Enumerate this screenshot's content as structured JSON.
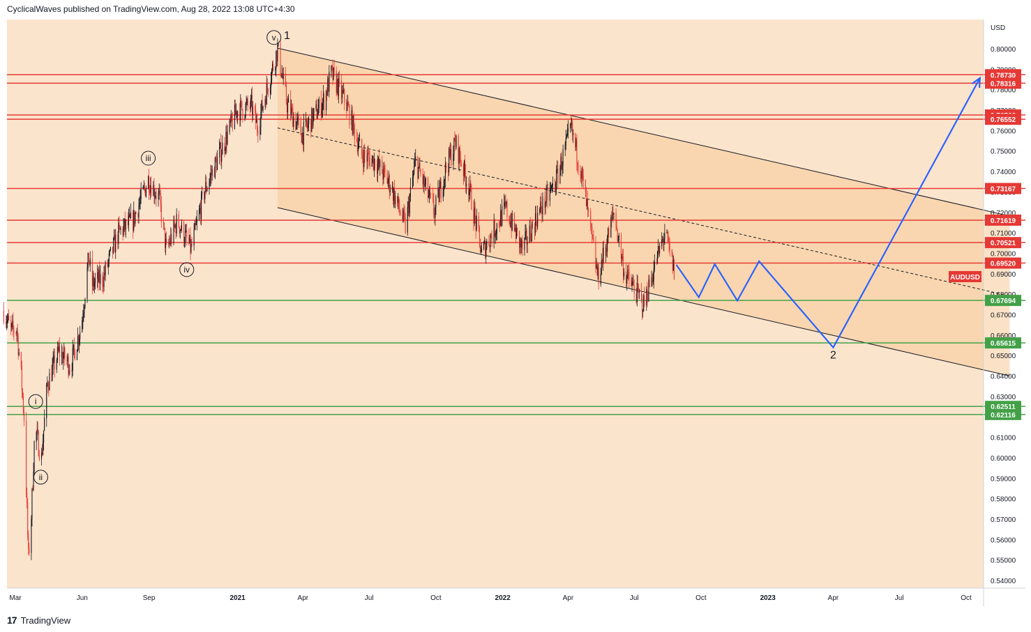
{
  "header": {
    "publisher_line": "CyclicalWaves published on TradingView.com, Aug 28, 2022 13:08 UTC+4:30"
  },
  "footer": {
    "logo_text": "TradingView",
    "logo_icon": "tradingview-logo-icon"
  },
  "colors": {
    "background": "#fbe4cc",
    "channel_fill": "#f8ca97",
    "resistance": "#e53935",
    "support": "#43a047",
    "projection": "#2962ff",
    "candle_up": "#131722",
    "candle_down": "#e53935",
    "symbol_badge": "#e53935"
  },
  "chart_data": {
    "type": "candlestick",
    "symbol": "AUDUSD",
    "currency_label": "USD",
    "ylim": [
      0.535,
      0.81
    ],
    "x_ticks": [
      {
        "label": "Mar",
        "date": "2020-03-01",
        "bold": false
      },
      {
        "label": "Jun",
        "date": "2020-06-01",
        "bold": false
      },
      {
        "label": "Sep",
        "date": "2020-09-01",
        "bold": false
      },
      {
        "label": "2021",
        "date": "2021-01-01",
        "bold": true
      },
      {
        "label": "Apr",
        "date": "2021-04-01",
        "bold": false
      },
      {
        "label": "Jul",
        "date": "2021-07-01",
        "bold": false
      },
      {
        "label": "Oct",
        "date": "2021-10-01",
        "bold": false
      },
      {
        "label": "2022",
        "date": "2022-01-01",
        "bold": true
      },
      {
        "label": "Apr",
        "date": "2022-04-01",
        "bold": false
      },
      {
        "label": "Jul",
        "date": "2022-07-01",
        "bold": false
      },
      {
        "label": "Oct",
        "date": "2022-10-01",
        "bold": false
      },
      {
        "label": "2023",
        "date": "2023-01-01",
        "bold": true
      },
      {
        "label": "Apr",
        "date": "2023-04-01",
        "bold": false
      },
      {
        "label": "Jul",
        "date": "2023-07-01",
        "bold": false
      },
      {
        "label": "Oct",
        "date": "2023-10-01",
        "bold": false
      }
    ],
    "y_ticks": [
      "0.80000",
      "0.79000",
      "0.78000",
      "0.77000",
      "0.76000",
      "0.75000",
      "0.74000",
      "0.73000",
      "0.72000",
      "0.71000",
      "0.70000",
      "0.69000",
      "0.68000",
      "0.67000",
      "0.66000",
      "0.65000",
      "0.64000",
      "0.63000",
      "0.62000",
      "0.61000",
      "0.60000",
      "0.59000",
      "0.58000",
      "0.57000",
      "0.56000",
      "0.55000",
      "0.54000"
    ],
    "horizontal_levels": [
      {
        "label": "0.78730",
        "value": 0.7873,
        "kind": "resistance"
      },
      {
        "label": "0.78316",
        "value": 0.78316,
        "kind": "resistance"
      },
      {
        "label": "0.76762",
        "value": 0.76762,
        "kind": "resistance"
      },
      {
        "label": "0.76552",
        "value": 0.76552,
        "kind": "resistance"
      },
      {
        "label": "0.73167",
        "value": 0.73167,
        "kind": "resistance"
      },
      {
        "label": "0.71619",
        "value": 0.71619,
        "kind": "resistance"
      },
      {
        "label": "0.70521",
        "value": 0.70521,
        "kind": "resistance"
      },
      {
        "label": "0.69520",
        "value": 0.6952,
        "kind": "resistance"
      },
      {
        "label": "0.67694",
        "value": 0.67694,
        "kind": "support"
      },
      {
        "label": "0.65615",
        "value": 0.65615,
        "kind": "support"
      },
      {
        "label": "0.62511",
        "value": 0.62511,
        "kind": "support"
      },
      {
        "label": "0.62116",
        "value": 0.62116,
        "kind": "support"
      }
    ],
    "price_path": [
      {
        "date": "2020-02-14",
        "price": 0.672
      },
      {
        "date": "2020-02-24",
        "price": 0.662
      },
      {
        "date": "2020-03-03",
        "price": 0.663
      },
      {
        "date": "2020-03-09",
        "price": 0.64
      },
      {
        "date": "2020-03-13",
        "price": 0.62
      },
      {
        "date": "2020-03-19",
        "price": 0.551
      },
      {
        "date": "2020-03-23",
        "price": 0.572
      },
      {
        "date": "2020-03-28",
        "price": 0.615
      },
      {
        "date": "2020-04-01",
        "price": 0.608
      },
      {
        "date": "2020-04-06",
        "price": 0.6
      },
      {
        "date": "2020-04-14",
        "price": 0.636
      },
      {
        "date": "2020-04-30",
        "price": 0.652
      },
      {
        "date": "2020-05-16",
        "price": 0.645
      },
      {
        "date": "2020-05-31",
        "price": 0.665
      },
      {
        "date": "2020-06-10",
        "price": 0.698
      },
      {
        "date": "2020-06-15",
        "price": 0.685
      },
      {
        "date": "2020-06-30",
        "price": 0.688
      },
      {
        "date": "2020-07-21",
        "price": 0.71
      },
      {
        "date": "2020-08-10",
        "price": 0.716
      },
      {
        "date": "2020-08-31",
        "price": 0.736
      },
      {
        "date": "2020-09-15",
        "price": 0.727
      },
      {
        "date": "2020-09-25",
        "price": 0.701
      },
      {
        "date": "2020-10-10",
        "price": 0.716
      },
      {
        "date": "2020-10-29",
        "price": 0.702
      },
      {
        "date": "2020-11-16",
        "price": 0.73
      },
      {
        "date": "2020-12-09",
        "price": 0.75
      },
      {
        "date": "2020-12-31",
        "price": 0.77
      },
      {
        "date": "2021-01-20",
        "price": 0.772
      },
      {
        "date": "2021-01-28",
        "price": 0.762
      },
      {
        "date": "2021-02-25",
        "price": 0.8
      },
      {
        "date": "2021-03-10",
        "price": 0.773
      },
      {
        "date": "2021-03-31",
        "price": 0.758
      },
      {
        "date": "2021-04-30",
        "price": 0.775
      },
      {
        "date": "2021-05-10",
        "price": 0.788
      },
      {
        "date": "2021-05-31",
        "price": 0.773
      },
      {
        "date": "2021-06-21",
        "price": 0.748
      },
      {
        "date": "2021-07-10",
        "price": 0.745
      },
      {
        "date": "2021-07-31",
        "price": 0.733
      },
      {
        "date": "2021-08-20",
        "price": 0.713
      },
      {
        "date": "2021-09-03",
        "price": 0.745
      },
      {
        "date": "2021-09-29",
        "price": 0.72
      },
      {
        "date": "2021-10-15",
        "price": 0.742
      },
      {
        "date": "2021-10-28",
        "price": 0.754
      },
      {
        "date": "2021-11-15",
        "price": 0.733
      },
      {
        "date": "2021-12-03",
        "price": 0.7
      },
      {
        "date": "2022-01-05",
        "price": 0.722
      },
      {
        "date": "2022-01-28",
        "price": 0.702
      },
      {
        "date": "2022-02-20",
        "price": 0.72
      },
      {
        "date": "2022-03-15",
        "price": 0.735
      },
      {
        "date": "2022-04-05",
        "price": 0.761
      },
      {
        "date": "2022-04-19",
        "price": 0.74
      },
      {
        "date": "2022-05-12",
        "price": 0.688
      },
      {
        "date": "2022-06-03",
        "price": 0.72
      },
      {
        "date": "2022-06-18",
        "price": 0.69
      },
      {
        "date": "2022-07-14",
        "price": 0.675
      },
      {
        "date": "2022-08-12",
        "price": 0.71
      },
      {
        "date": "2022-08-26",
        "price": 0.69
      }
    ],
    "channel": {
      "upper": [
        {
          "date": "2021-02-25",
          "price": 0.8003
        },
        {
          "date": "2023-11-30",
          "price": 0.7182
        }
      ],
      "middle": [
        {
          "date": "2021-02-25",
          "price": 0.7613
        },
        {
          "date": "2023-11-30",
          "price": 0.6791
        }
      ],
      "lower": [
        {
          "date": "2021-02-25",
          "price": 0.7223
        },
        {
          "date": "2023-11-30",
          "price": 0.64
        }
      ]
    },
    "projection": [
      {
        "date": "2022-08-28",
        "price": 0.6944
      },
      {
        "date": "2022-09-28",
        "price": 0.6785
      },
      {
        "date": "2022-10-20",
        "price": 0.6947
      },
      {
        "date": "2022-11-20",
        "price": 0.6768
      },
      {
        "date": "2022-12-20",
        "price": 0.6961
      },
      {
        "date": "2023-04-01",
        "price": 0.6539
      },
      {
        "date": "2023-10-20",
        "price": 0.7857
      }
    ],
    "wave_labels": [
      {
        "text": "i",
        "date": "2020-03-29",
        "price": 0.6275,
        "circled": true
      },
      {
        "text": "ii",
        "date": "2020-04-05",
        "price": 0.5905,
        "circled": true
      },
      {
        "text": "iii",
        "date": "2020-08-31",
        "price": 0.7465,
        "circled": true
      },
      {
        "text": "iv",
        "date": "2020-10-23",
        "price": 0.692,
        "circled": true
      },
      {
        "text": "v",
        "date": "2021-02-20",
        "price": 0.8055,
        "circled": true
      },
      {
        "text": "1",
        "date": "2021-03-10",
        "price": 0.8068,
        "circled": false
      },
      {
        "text": "2",
        "date": "2023-04-01",
        "price": 0.6505,
        "circled": false
      }
    ]
  }
}
